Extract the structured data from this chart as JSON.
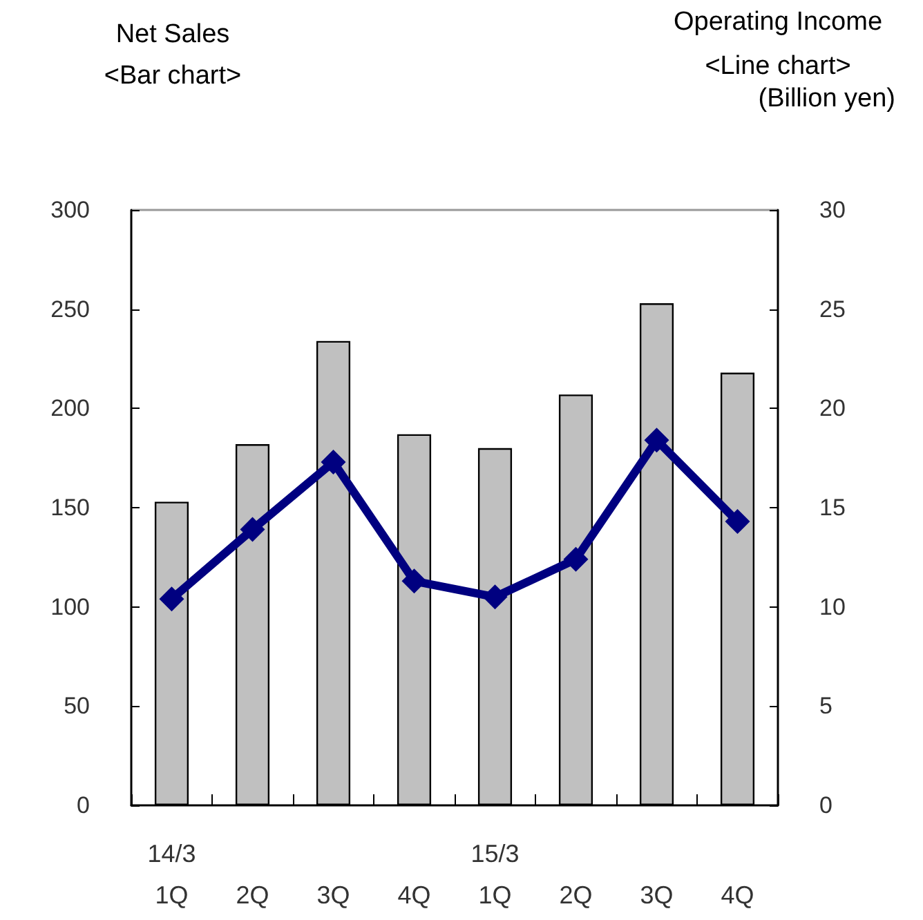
{
  "chart_data": {
    "type": "bar",
    "ylabel": "Net Sales\n<Bar chart>",
    "y2label": "Operating Income\n<Line chart>",
    "annotations": [
      "(Billion yen)"
    ],
    "categories": [
      "14/3\n1Q",
      "2Q",
      "3Q",
      "4Q",
      "15/3\n1Q",
      "2Q",
      "3Q",
      "4Q"
    ],
    "series": [
      {
        "color": "#c0c0c0",
        "values": [
          153,
          182,
          234,
          187,
          180,
          207,
          253,
          218
        ]
      },
      {
        "type": "line",
        "axis": "y2",
        "color": "#000080",
        "marker": "diamond",
        "values": [
          10.4,
          13.9,
          17.3,
          11.3,
          10.5,
          12.4,
          18.4,
          14.3
        ]
      }
    ],
    "ylim": [
      0,
      300
    ],
    "yticks": [
      0,
      50,
      100,
      150,
      200,
      250,
      300
    ],
    "y2lim": [
      0,
      30
    ],
    "y2ticks": [
      0,
      5,
      10,
      15,
      20,
      25,
      30
    ],
    "grid": false
  }
}
